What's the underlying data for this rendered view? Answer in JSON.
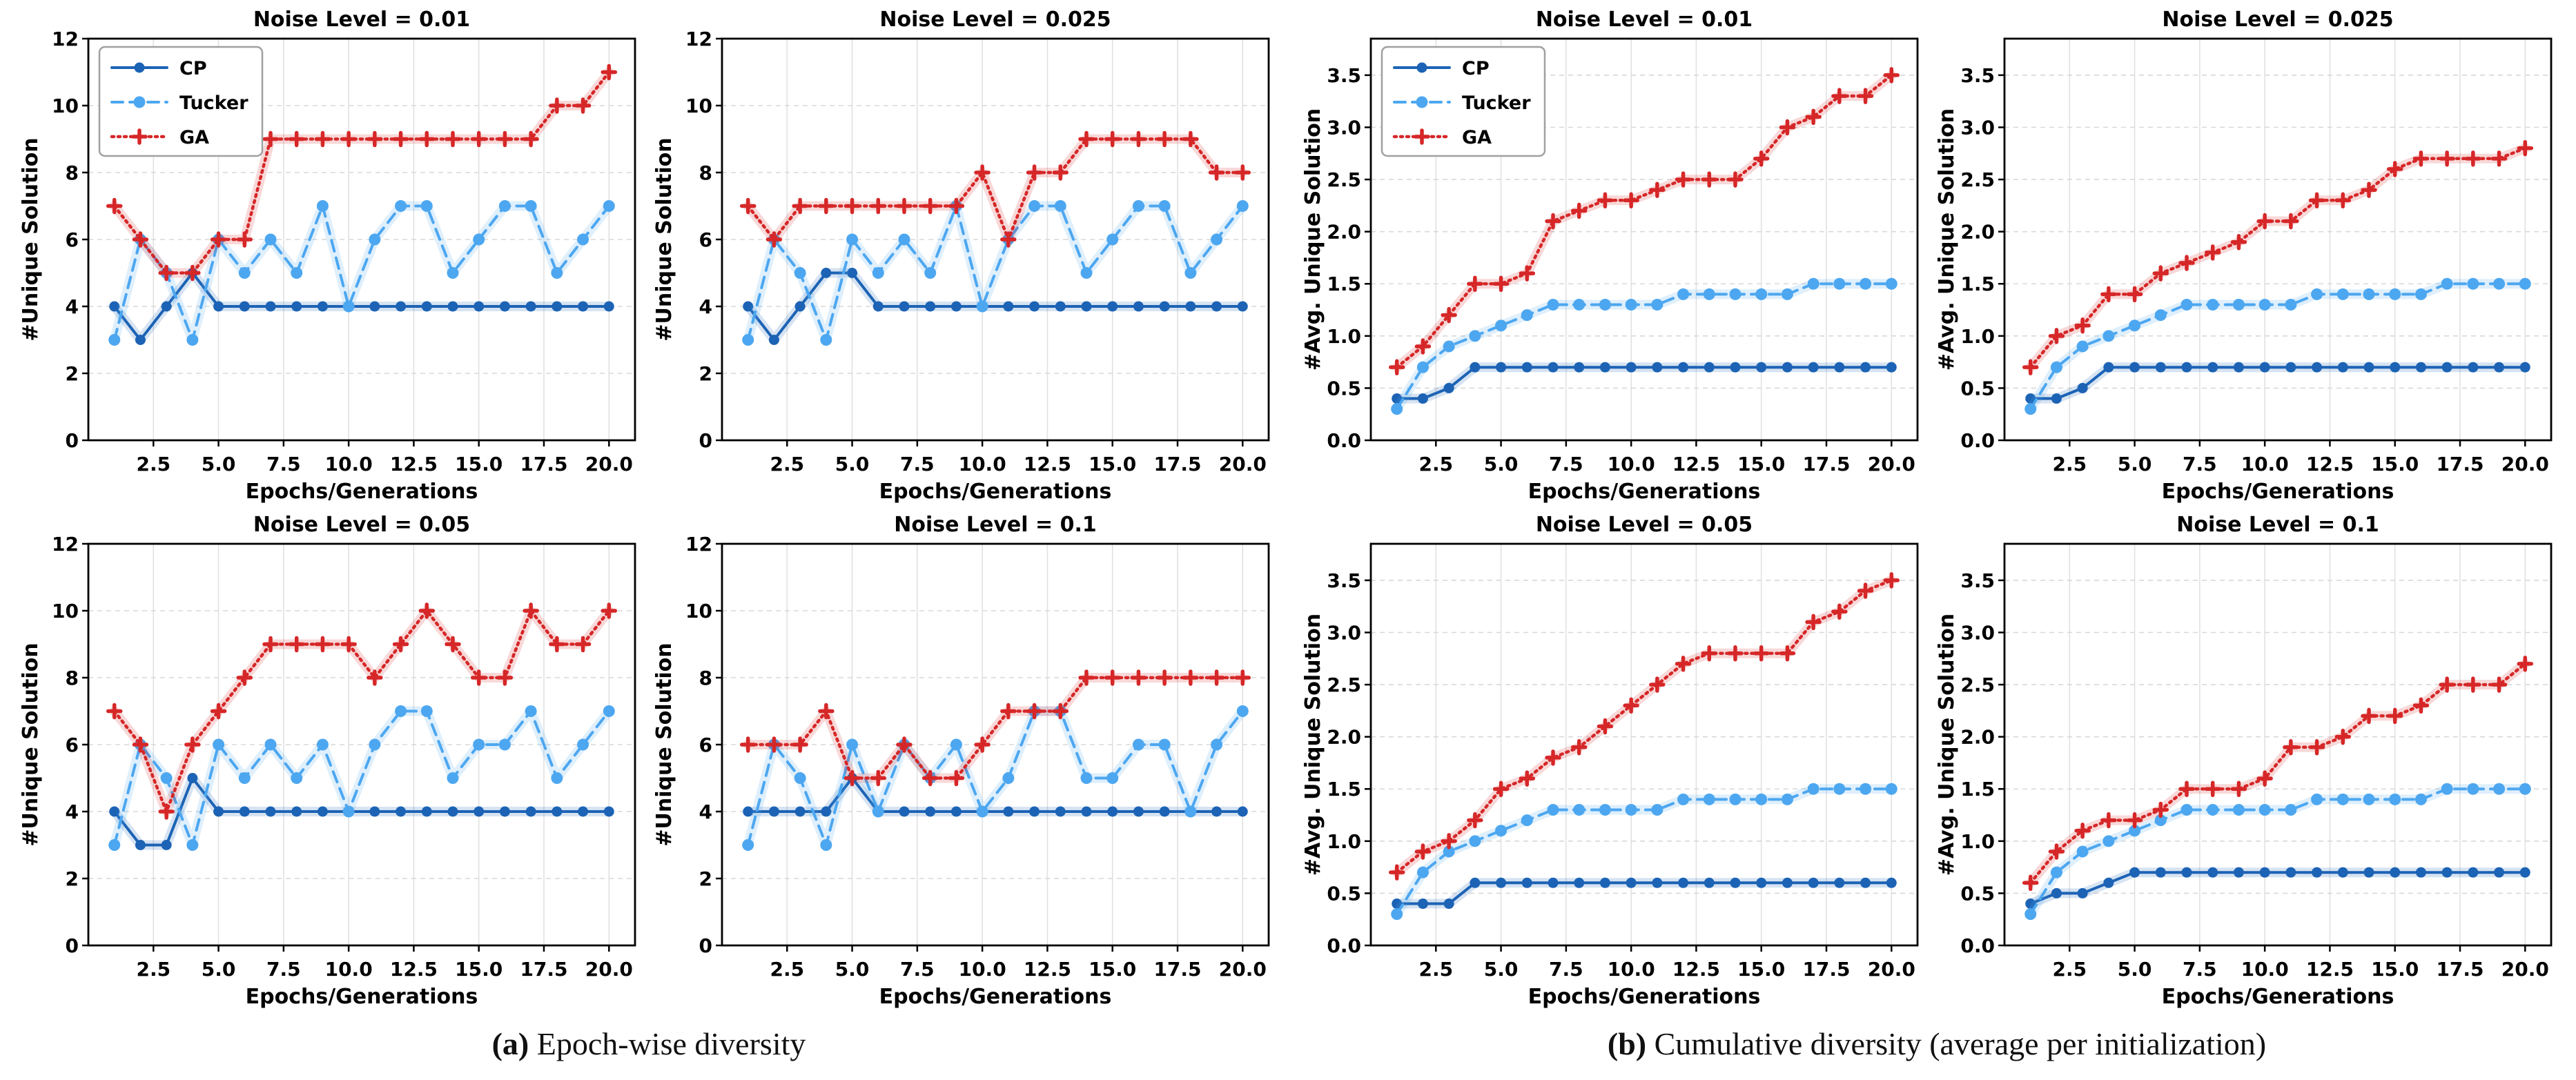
{
  "figure": {
    "captions": [
      {
        "tag": "(a)",
        "text": "Epoch-wise diversity"
      },
      {
        "tag": "(b)",
        "text": "Cumulative diversity (average per initialization)"
      }
    ],
    "legend_labels": [
      "CP",
      "Tucker",
      "GA"
    ],
    "series_styles": {
      "CP": {
        "color": "#1c63b5",
        "marker": "circle",
        "dash": "",
        "line_width": 4,
        "marker_r": 7.5
      },
      "Tucker": {
        "color": "#4da7f0",
        "marker": "circle",
        "dash": "16 10",
        "line_width": 4,
        "marker_r": 8.5
      },
      "GA": {
        "color": "#d62728",
        "marker": "plus",
        "dash": "3 6",
        "line_width": 4.5,
        "marker_r": 9
      }
    },
    "band_opacity": 0.18,
    "x_tick_values": [
      2.5,
      5.0,
      7.5,
      10.0,
      12.5,
      15.0,
      17.5,
      20.0
    ],
    "x_tick_labels": [
      "2.5",
      "5.0",
      "7.5",
      "10.0",
      "12.5",
      "15.0",
      "17.5",
      "20.0"
    ],
    "xlim": [
      0,
      21
    ]
  },
  "chart_data": [
    {
      "type": "line",
      "panel": "a",
      "title": "Noise Level = 0.01",
      "ylabel": "#Unique Solution",
      "xlabel": "Epochs/Generations",
      "legend": true,
      "ylim": [
        0,
        12
      ],
      "axis_ymax": 12,
      "yticks": [
        0,
        2,
        4,
        6,
        8,
        10,
        12
      ],
      "ytick_labels": [
        "0",
        "2",
        "4",
        "6",
        "8",
        "10",
        "12"
      ],
      "x": [
        1,
        2,
        3,
        4,
        5,
        6,
        7,
        8,
        9,
        10,
        11,
        12,
        13,
        14,
        15,
        16,
        17,
        18,
        19,
        20
      ],
      "series": [
        {
          "name": "CP",
          "values": [
            4,
            3,
            4,
            5,
            4,
            4,
            4,
            4,
            4,
            4,
            4,
            4,
            4,
            4,
            4,
            4,
            4,
            4,
            4,
            4
          ]
        },
        {
          "name": "Tucker",
          "values": [
            3,
            6,
            5,
            3,
            6,
            5,
            6,
            5,
            7,
            4,
            6,
            7,
            7,
            5,
            6,
            7,
            7,
            5,
            6,
            7
          ]
        },
        {
          "name": "GA",
          "values": [
            7,
            6,
            5,
            5,
            6,
            6,
            9,
            9,
            9,
            9,
            9,
            9,
            9,
            9,
            9,
            9,
            9,
            10,
            10,
            11
          ]
        }
      ]
    },
    {
      "type": "line",
      "panel": "a",
      "title": "Noise Level = 0.025",
      "ylabel": "#Unique Solution",
      "xlabel": "Epochs/Generations",
      "legend": false,
      "ylim": [
        0,
        12
      ],
      "axis_ymax": 12,
      "yticks": [
        0,
        2,
        4,
        6,
        8,
        10,
        12
      ],
      "ytick_labels": [
        "0",
        "2",
        "4",
        "6",
        "8",
        "10",
        "12"
      ],
      "x": [
        1,
        2,
        3,
        4,
        5,
        6,
        7,
        8,
        9,
        10,
        11,
        12,
        13,
        14,
        15,
        16,
        17,
        18,
        19,
        20
      ],
      "series": [
        {
          "name": "CP",
          "values": [
            4,
            3,
            4,
            5,
            5,
            4,
            4,
            4,
            4,
            4,
            4,
            4,
            4,
            4,
            4,
            4,
            4,
            4,
            4,
            4
          ]
        },
        {
          "name": "Tucker",
          "values": [
            3,
            6,
            5,
            3,
            6,
            5,
            6,
            5,
            7,
            4,
            6,
            7,
            7,
            5,
            6,
            7,
            7,
            5,
            6,
            7
          ]
        },
        {
          "name": "GA",
          "values": [
            7,
            6,
            7,
            7,
            7,
            7,
            7,
            7,
            7,
            8,
            6,
            8,
            8,
            9,
            9,
            9,
            9,
            9,
            8,
            8
          ]
        }
      ]
    },
    {
      "type": "line",
      "panel": "a",
      "title": "Noise Level = 0.05",
      "ylabel": "#Unique Solution",
      "xlabel": "Epochs/Generations",
      "legend": false,
      "ylim": [
        0,
        12
      ],
      "axis_ymax": 12,
      "yticks": [
        0,
        2,
        4,
        6,
        8,
        10,
        12
      ],
      "ytick_labels": [
        "0",
        "2",
        "4",
        "6",
        "8",
        "10",
        "12"
      ],
      "x": [
        1,
        2,
        3,
        4,
        5,
        6,
        7,
        8,
        9,
        10,
        11,
        12,
        13,
        14,
        15,
        16,
        17,
        18,
        19,
        20
      ],
      "series": [
        {
          "name": "CP",
          "values": [
            4,
            3,
            3,
            5,
            4,
            4,
            4,
            4,
            4,
            4,
            4,
            4,
            4,
            4,
            4,
            4,
            4,
            4,
            4,
            4
          ]
        },
        {
          "name": "Tucker",
          "values": [
            3,
            6,
            5,
            3,
            6,
            5,
            6,
            5,
            6,
            4,
            6,
            7,
            7,
            5,
            6,
            6,
            7,
            5,
            6,
            7
          ]
        },
        {
          "name": "GA",
          "values": [
            7,
            6,
            4,
            6,
            7,
            8,
            9,
            9,
            9,
            9,
            8,
            9,
            10,
            9,
            8,
            8,
            10,
            9,
            9,
            10
          ]
        }
      ]
    },
    {
      "type": "line",
      "panel": "a",
      "title": "Noise Level = 0.1",
      "ylabel": "#Unique Solution",
      "xlabel": "Epochs/Generations",
      "legend": false,
      "ylim": [
        0,
        12
      ],
      "axis_ymax": 12,
      "yticks": [
        0,
        2,
        4,
        6,
        8,
        10,
        12
      ],
      "ytick_labels": [
        "0",
        "2",
        "4",
        "6",
        "8",
        "10",
        "12"
      ],
      "x": [
        1,
        2,
        3,
        4,
        5,
        6,
        7,
        8,
        9,
        10,
        11,
        12,
        13,
        14,
        15,
        16,
        17,
        18,
        19,
        20
      ],
      "series": [
        {
          "name": "CP",
          "values": [
            4,
            4,
            4,
            4,
            5,
            4,
            4,
            4,
            4,
            4,
            4,
            4,
            4,
            4,
            4,
            4,
            4,
            4,
            4,
            4
          ]
        },
        {
          "name": "Tucker",
          "values": [
            3,
            6,
            5,
            3,
            6,
            4,
            6,
            5,
            6,
            4,
            5,
            7,
            7,
            5,
            5,
            6,
            6,
            4,
            6,
            7
          ]
        },
        {
          "name": "GA",
          "values": [
            6,
            6,
            6,
            7,
            5,
            5,
            6,
            5,
            5,
            6,
            7,
            7,
            7,
            8,
            8,
            8,
            8,
            8,
            8,
            8
          ]
        }
      ]
    },
    {
      "type": "line",
      "panel": "b",
      "title": "Noise Level = 0.01",
      "ylabel": "#Avg. Unique Solution",
      "xlabel": "Epochs/Generations",
      "legend": true,
      "ylim": [
        0,
        3.5
      ],
      "axis_ymax": 3.85,
      "yticks": [
        0,
        0.5,
        1.0,
        1.5,
        2.0,
        2.5,
        3.0,
        3.5
      ],
      "ytick_labels": [
        "0.0",
        "0.5",
        "1.0",
        "1.5",
        "2.0",
        "2.5",
        "3.0",
        "3.5"
      ],
      "x": [
        1,
        2,
        3,
        4,
        5,
        6,
        7,
        8,
        9,
        10,
        11,
        12,
        13,
        14,
        15,
        16,
        17,
        18,
        19,
        20
      ],
      "series": [
        {
          "name": "CP",
          "values": [
            0.4,
            0.4,
            0.5,
            0.7,
            0.7,
            0.7,
            0.7,
            0.7,
            0.7,
            0.7,
            0.7,
            0.7,
            0.7,
            0.7,
            0.7,
            0.7,
            0.7,
            0.7,
            0.7,
            0.7
          ]
        },
        {
          "name": "Tucker",
          "values": [
            0.3,
            0.7,
            0.9,
            1.0,
            1.1,
            1.2,
            1.3,
            1.3,
            1.3,
            1.3,
            1.3,
            1.4,
            1.4,
            1.4,
            1.4,
            1.4,
            1.5,
            1.5,
            1.5,
            1.5
          ]
        },
        {
          "name": "GA",
          "values": [
            0.7,
            0.9,
            1.2,
            1.5,
            1.5,
            1.6,
            2.1,
            2.2,
            2.3,
            2.3,
            2.4,
            2.5,
            2.5,
            2.5,
            2.7,
            3.0,
            3.1,
            3.3,
            3.3,
            3.5
          ]
        }
      ]
    },
    {
      "type": "line",
      "panel": "b",
      "title": "Noise Level = 0.025",
      "ylabel": "#Avg. Unique Solution",
      "xlabel": "Epochs/Generations",
      "legend": false,
      "ylim": [
        0,
        3.5
      ],
      "axis_ymax": 3.85,
      "yticks": [
        0,
        0.5,
        1.0,
        1.5,
        2.0,
        2.5,
        3.0,
        3.5
      ],
      "ytick_labels": [
        "0.0",
        "0.5",
        "1.0",
        "1.5",
        "2.0",
        "2.5",
        "3.0",
        "3.5"
      ],
      "x": [
        1,
        2,
        3,
        4,
        5,
        6,
        7,
        8,
        9,
        10,
        11,
        12,
        13,
        14,
        15,
        16,
        17,
        18,
        19,
        20
      ],
      "series": [
        {
          "name": "CP",
          "values": [
            0.4,
            0.4,
            0.5,
            0.7,
            0.7,
            0.7,
            0.7,
            0.7,
            0.7,
            0.7,
            0.7,
            0.7,
            0.7,
            0.7,
            0.7,
            0.7,
            0.7,
            0.7,
            0.7,
            0.7
          ]
        },
        {
          "name": "Tucker",
          "values": [
            0.3,
            0.7,
            0.9,
            1.0,
            1.1,
            1.2,
            1.3,
            1.3,
            1.3,
            1.3,
            1.3,
            1.4,
            1.4,
            1.4,
            1.4,
            1.4,
            1.5,
            1.5,
            1.5,
            1.5
          ]
        },
        {
          "name": "GA",
          "values": [
            0.7,
            1.0,
            1.1,
            1.4,
            1.4,
            1.6,
            1.7,
            1.8,
            1.9,
            2.1,
            2.1,
            2.3,
            2.3,
            2.4,
            2.6,
            2.7,
            2.7,
            2.7,
            2.7,
            2.8
          ]
        }
      ]
    },
    {
      "type": "line",
      "panel": "b",
      "title": "Noise Level = 0.05",
      "ylabel": "#Avg. Unique Solution",
      "xlabel": "Epochs/Generations",
      "legend": false,
      "ylim": [
        0,
        3.5
      ],
      "axis_ymax": 3.85,
      "yticks": [
        0,
        0.5,
        1.0,
        1.5,
        2.0,
        2.5,
        3.0,
        3.5
      ],
      "ytick_labels": [
        "0.0",
        "0.5",
        "1.0",
        "1.5",
        "2.0",
        "2.5",
        "3.0",
        "3.5"
      ],
      "x": [
        1,
        2,
        3,
        4,
        5,
        6,
        7,
        8,
        9,
        10,
        11,
        12,
        13,
        14,
        15,
        16,
        17,
        18,
        19,
        20
      ],
      "series": [
        {
          "name": "CP",
          "values": [
            0.4,
            0.4,
            0.4,
            0.6,
            0.6,
            0.6,
            0.6,
            0.6,
            0.6,
            0.6,
            0.6,
            0.6,
            0.6,
            0.6,
            0.6,
            0.6,
            0.6,
            0.6,
            0.6,
            0.6
          ]
        },
        {
          "name": "Tucker",
          "values": [
            0.3,
            0.7,
            0.9,
            1.0,
            1.1,
            1.2,
            1.3,
            1.3,
            1.3,
            1.3,
            1.3,
            1.4,
            1.4,
            1.4,
            1.4,
            1.4,
            1.5,
            1.5,
            1.5,
            1.5
          ]
        },
        {
          "name": "GA",
          "values": [
            0.7,
            0.9,
            1.0,
            1.2,
            1.5,
            1.6,
            1.8,
            1.9,
            2.1,
            2.3,
            2.5,
            2.7,
            2.8,
            2.8,
            2.8,
            2.8,
            3.1,
            3.2,
            3.4,
            3.5
          ]
        }
      ]
    },
    {
      "type": "line",
      "panel": "b",
      "title": "Noise Level = 0.1",
      "ylabel": "#Avg. Unique Solution",
      "xlabel": "Epochs/Generations",
      "legend": false,
      "ylim": [
        0,
        3.5
      ],
      "axis_ymax": 3.85,
      "yticks": [
        0,
        0.5,
        1.0,
        1.5,
        2.0,
        2.5,
        3.0,
        3.5
      ],
      "ytick_labels": [
        "0.0",
        "0.5",
        "1.0",
        "1.5",
        "2.0",
        "2.5",
        "3.0",
        "3.5"
      ],
      "x": [
        1,
        2,
        3,
        4,
        5,
        6,
        7,
        8,
        9,
        10,
        11,
        12,
        13,
        14,
        15,
        16,
        17,
        18,
        19,
        20
      ],
      "series": [
        {
          "name": "CP",
          "values": [
            0.4,
            0.5,
            0.5,
            0.6,
            0.7,
            0.7,
            0.7,
            0.7,
            0.7,
            0.7,
            0.7,
            0.7,
            0.7,
            0.7,
            0.7,
            0.7,
            0.7,
            0.7,
            0.7,
            0.7
          ]
        },
        {
          "name": "Tucker",
          "values": [
            0.3,
            0.7,
            0.9,
            1.0,
            1.1,
            1.2,
            1.3,
            1.3,
            1.3,
            1.3,
            1.3,
            1.4,
            1.4,
            1.4,
            1.4,
            1.4,
            1.5,
            1.5,
            1.5,
            1.5
          ]
        },
        {
          "name": "GA",
          "values": [
            0.6,
            0.9,
            1.1,
            1.2,
            1.2,
            1.3,
            1.5,
            1.5,
            1.5,
            1.6,
            1.9,
            1.9,
            2.0,
            2.2,
            2.2,
            2.3,
            2.5,
            2.5,
            2.5,
            2.7
          ]
        }
      ]
    }
  ]
}
